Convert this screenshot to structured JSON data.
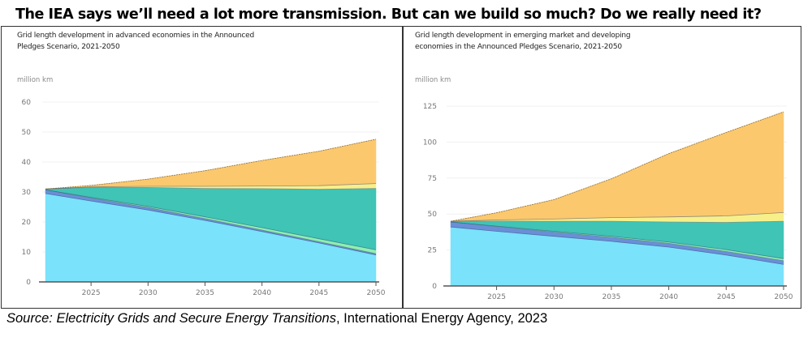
{
  "headline": "The IEA says we’ll need a lot more transmission. But can we build so much? Do we really need it?",
  "source": {
    "prefix": "Source: ",
    "title": "Electricity Grids and Secure Energy Transitions",
    "rest": ", International Energy Agency, 2023"
  },
  "colors": {
    "series_1": "#7ae2fb",
    "series_2": "#6a8fd8",
    "series_3": "#8ef0b0",
    "series_4": "#3fc4b6",
    "series_5": "#f7f08a",
    "series_6": "#fbc86e",
    "outline": "#8a6f40"
  },
  "chart_data": [
    {
      "type": "area",
      "stacked": true,
      "title_line1": "Grid length development in advanced economies in the Announced",
      "title_line2": "Pledges Scenario, 2021-2050",
      "ylabel": "million km",
      "xlabel": "",
      "ylim": [
        0,
        60
      ],
      "yticks": [
        0,
        10,
        20,
        30,
        40,
        50,
        60
      ],
      "xlim": [
        2021,
        2050
      ],
      "xticks": [
        2025,
        2030,
        2035,
        2040,
        2045,
        2050
      ],
      "grid": true,
      "x": [
        2021,
        2025,
        2030,
        2035,
        2040,
        2045,
        2050
      ],
      "series": [
        {
          "name": "series_1",
          "values": [
            29.5,
            27.0,
            24.0,
            20.5,
            16.8,
            13.0,
            9.0
          ]
        },
        {
          "name": "series_2",
          "values": [
            1.2,
            1.0,
            0.8,
            0.6,
            0.5,
            0.4,
            0.4
          ]
        },
        {
          "name": "series_3",
          "values": [
            0.0,
            0.2,
            0.4,
            0.6,
            0.8,
            1.0,
            1.3
          ]
        },
        {
          "name": "series_4",
          "values": [
            0.3,
            3.3,
            6.3,
            9.5,
            13.0,
            16.5,
            20.5
          ]
        },
        {
          "name": "series_5",
          "values": [
            0.0,
            0.2,
            0.4,
            0.7,
            0.9,
            1.2,
            1.6
          ]
        },
        {
          "name": "series_6",
          "values": [
            0.0,
            0.5,
            2.4,
            5.2,
            8.5,
            11.5,
            14.8
          ]
        }
      ]
    },
    {
      "type": "area",
      "stacked": true,
      "title_line1": "Grid length development in emerging market and developing",
      "title_line2": "economies in the Announced Pledges Scenario, 2021-2050",
      "ylabel": "million km",
      "xlabel": "",
      "ylim": [
        0,
        125
      ],
      "yticks": [
        0,
        25,
        50,
        75,
        100,
        125
      ],
      "xlim": [
        2021,
        2050
      ],
      "xticks": [
        2025,
        2030,
        2035,
        2040,
        2045,
        2050
      ],
      "grid": true,
      "x": [
        2021,
        2025,
        2030,
        2035,
        2040,
        2045,
        2050
      ],
      "series": [
        {
          "name": "series_1",
          "values": [
            41.0,
            38.0,
            34.5,
            31.0,
            27.0,
            21.5,
            15.0
          ]
        },
        {
          "name": "series_2",
          "values": [
            3.5,
            3.3,
            3.0,
            2.8,
            2.6,
            2.5,
            2.5
          ]
        },
        {
          "name": "series_3",
          "values": [
            0.0,
            0.3,
            0.5,
            0.7,
            0.9,
            1.2,
            1.5
          ]
        },
        {
          "name": "series_4",
          "values": [
            0.5,
            3.5,
            7.0,
            10.5,
            14.0,
            19.0,
            26.0
          ]
        },
        {
          "name": "series_5",
          "values": [
            0.0,
            0.8,
            1.5,
            2.5,
            3.5,
            4.5,
            6.0
          ]
        },
        {
          "name": "series_6",
          "values": [
            0.0,
            5.0,
            13.5,
            27.0,
            44.0,
            58.0,
            70.0
          ]
        }
      ]
    }
  ]
}
